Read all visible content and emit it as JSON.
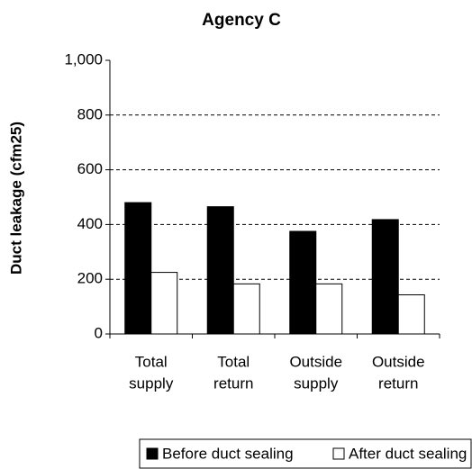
{
  "chart_data": {
    "type": "bar",
    "title": "Agency C",
    "y_label": "Duct leakage (cfm25)",
    "categories": [
      [
        "Total",
        "supply"
      ],
      [
        "Total",
        "return"
      ],
      [
        "Outside",
        "supply"
      ],
      [
        "Outside",
        "return"
      ]
    ],
    "series": [
      {
        "name": "Before duct sealing",
        "color": "#000000",
        "values": [
          480,
          465,
          375,
          418
        ]
      },
      {
        "name": "After duct sealing",
        "color": "#ffffff",
        "values": [
          225,
          183,
          183,
          143
        ]
      }
    ],
    "ylim": [
      0,
      1000
    ],
    "yticks": [
      0,
      200,
      400,
      600,
      800,
      {
        "value": 1000,
        "label": "1,000"
      }
    ],
    "grid": true
  }
}
